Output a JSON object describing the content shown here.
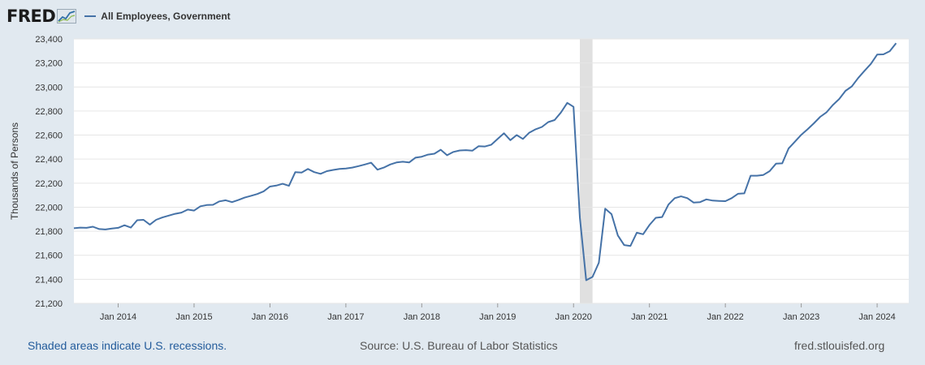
{
  "header": {
    "logo_text": "FRED",
    "series_label": "All Employees, Government"
  },
  "colors": {
    "series": "#4572a7",
    "recession": "#e0e0e0",
    "grid": "#e6e6e6",
    "background": "#e1e9f0",
    "plot_background": "#ffffff"
  },
  "chart_data": {
    "type": "line",
    "title": "",
    "xlabel": "",
    "ylabel": "Thousands of Persons",
    "ylim": [
      21200,
      23400
    ],
    "yticks": [
      21200,
      21400,
      21600,
      21800,
      22000,
      22200,
      22400,
      22600,
      22800,
      23000,
      23200,
      23400
    ],
    "ytick_labels": [
      "21,200",
      "21,400",
      "21,600",
      "21,800",
      "22,000",
      "22,200",
      "22,400",
      "22,600",
      "22,800",
      "23,000",
      "23,200",
      "23,400"
    ],
    "xlim": [
      "2013-06",
      "2024-06"
    ],
    "xticks": [
      "2014-01",
      "2015-01",
      "2016-01",
      "2017-01",
      "2018-01",
      "2019-01",
      "2020-01",
      "2021-01",
      "2022-01",
      "2023-01",
      "2024-01"
    ],
    "xtick_labels": [
      "Jan 2014",
      "Jan 2015",
      "Jan 2016",
      "Jan 2017",
      "Jan 2018",
      "Jan 2019",
      "Jan 2020",
      "Jan 2021",
      "Jan 2022",
      "Jan 2023",
      "Jan 2024"
    ],
    "recessions": [
      {
        "start": "2020-02",
        "end": "2020-04"
      }
    ],
    "grid": true,
    "series": [
      {
        "name": "All Employees, Government",
        "points": [
          [
            "2013-06",
            21825
          ],
          [
            "2013-07",
            21830
          ],
          [
            "2013-08",
            21828
          ],
          [
            "2013-09",
            21838
          ],
          [
            "2013-10",
            21818
          ],
          [
            "2013-11",
            21815
          ],
          [
            "2013-12",
            21822
          ],
          [
            "2014-01",
            21828
          ],
          [
            "2014-02",
            21850
          ],
          [
            "2014-03",
            21830
          ],
          [
            "2014-04",
            21892
          ],
          [
            "2014-05",
            21895
          ],
          [
            "2014-06",
            21855
          ],
          [
            "2014-07",
            21895
          ],
          [
            "2014-08",
            21915
          ],
          [
            "2014-09",
            21930
          ],
          [
            "2014-10",
            21945
          ],
          [
            "2014-11",
            21955
          ],
          [
            "2014-12",
            21980
          ],
          [
            "2015-01",
            21972
          ],
          [
            "2015-02",
            22008
          ],
          [
            "2015-03",
            22018
          ],
          [
            "2015-04",
            22020
          ],
          [
            "2015-05",
            22048
          ],
          [
            "2015-06",
            22058
          ],
          [
            "2015-07",
            22042
          ],
          [
            "2015-08",
            22060
          ],
          [
            "2015-09",
            22080
          ],
          [
            "2015-10",
            22095
          ],
          [
            "2015-11",
            22110
          ],
          [
            "2015-12",
            22132
          ],
          [
            "2016-01",
            22172
          ],
          [
            "2016-02",
            22180
          ],
          [
            "2016-03",
            22195
          ],
          [
            "2016-04",
            22178
          ],
          [
            "2016-05",
            22292
          ],
          [
            "2016-06",
            22288
          ],
          [
            "2016-07",
            22318
          ],
          [
            "2016-08",
            22292
          ],
          [
            "2016-09",
            22278
          ],
          [
            "2016-10",
            22300
          ],
          [
            "2016-11",
            22310
          ],
          [
            "2016-12",
            22318
          ],
          [
            "2017-01",
            22322
          ],
          [
            "2017-02",
            22330
          ],
          [
            "2017-03",
            22342
          ],
          [
            "2017-04",
            22355
          ],
          [
            "2017-05",
            22370
          ],
          [
            "2017-06",
            22312
          ],
          [
            "2017-07",
            22330
          ],
          [
            "2017-08",
            22355
          ],
          [
            "2017-09",
            22372
          ],
          [
            "2017-10",
            22378
          ],
          [
            "2017-11",
            22372
          ],
          [
            "2017-12",
            22412
          ],
          [
            "2018-01",
            22420
          ],
          [
            "2018-02",
            22438
          ],
          [
            "2018-03",
            22445
          ],
          [
            "2018-04",
            22478
          ],
          [
            "2018-05",
            22432
          ],
          [
            "2018-06",
            22460
          ],
          [
            "2018-07",
            22472
          ],
          [
            "2018-08",
            22475
          ],
          [
            "2018-09",
            22470
          ],
          [
            "2018-10",
            22508
          ],
          [
            "2018-11",
            22505
          ],
          [
            "2018-12",
            22520
          ],
          [
            "2019-01",
            22568
          ],
          [
            "2019-02",
            22615
          ],
          [
            "2019-03",
            22558
          ],
          [
            "2019-04",
            22600
          ],
          [
            "2019-05",
            22568
          ],
          [
            "2019-06",
            22620
          ],
          [
            "2019-07",
            22648
          ],
          [
            "2019-08",
            22668
          ],
          [
            "2019-09",
            22708
          ],
          [
            "2019-10",
            22725
          ],
          [
            "2019-11",
            22788
          ],
          [
            "2019-12",
            22868
          ],
          [
            "2020-01",
            22835
          ],
          [
            "2020-02",
            21915
          ],
          [
            "2020-03",
            21392
          ],
          [
            "2020-04",
            21420
          ],
          [
            "2020-05",
            21538
          ],
          [
            "2020-06",
            21988
          ],
          [
            "2020-07",
            21942
          ],
          [
            "2020-08",
            21765
          ],
          [
            "2020-09",
            21685
          ],
          [
            "2020-10",
            21678
          ],
          [
            "2020-11",
            21788
          ],
          [
            "2020-12",
            21775
          ],
          [
            "2021-01",
            21852
          ],
          [
            "2021-02",
            21912
          ],
          [
            "2021-03",
            21918
          ],
          [
            "2021-04",
            22022
          ],
          [
            "2021-05",
            22075
          ],
          [
            "2021-06",
            22090
          ],
          [
            "2021-07",
            22075
          ],
          [
            "2021-08",
            22038
          ],
          [
            "2021-09",
            22042
          ],
          [
            "2021-10",
            22065
          ],
          [
            "2021-11",
            22055
          ],
          [
            "2021-12",
            22052
          ],
          [
            "2022-01",
            22050
          ],
          [
            "2022-02",
            22075
          ],
          [
            "2022-03",
            22112
          ],
          [
            "2022-04",
            22115
          ],
          [
            "2022-05",
            22262
          ],
          [
            "2022-06",
            22262
          ],
          [
            "2022-07",
            22268
          ],
          [
            "2022-08",
            22300
          ],
          [
            "2022-09",
            22362
          ],
          [
            "2022-10",
            22365
          ],
          [
            "2022-11",
            22488
          ],
          [
            "2022-12",
            22545
          ],
          [
            "2023-01",
            22602
          ],
          [
            "2023-02",
            22648
          ],
          [
            "2023-03",
            22698
          ],
          [
            "2023-04",
            22752
          ],
          [
            "2023-05",
            22790
          ],
          [
            "2023-06",
            22850
          ],
          [
            "2023-07",
            22900
          ],
          [
            "2023-08",
            22968
          ],
          [
            "2023-09",
            23005
          ],
          [
            "2023-10",
            23075
          ],
          [
            "2023-11",
            23135
          ],
          [
            "2023-12",
            23192
          ],
          [
            "2024-01",
            23270
          ],
          [
            "2024-02",
            23272
          ],
          [
            "2024-03",
            23298
          ],
          [
            "2024-04",
            23365
          ]
        ]
      }
    ]
  },
  "footer": {
    "recession_note": "Shaded areas indicate U.S. recessions.",
    "source": "Source: U.S. Bureau of Labor Statistics",
    "site": "fred.stlouisfed.org"
  }
}
